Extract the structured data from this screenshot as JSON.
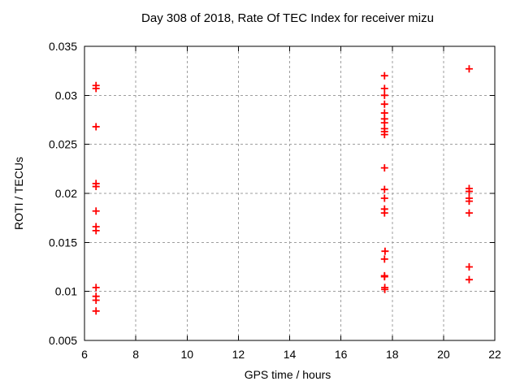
{
  "chart_data": {
    "type": "scatter",
    "title": "Day 308 of 2018, Rate Of TEC Index for receiver mizu",
    "xlabel": "GPS time / hours",
    "ylabel": "ROTI / TECUs",
    "xlim": [
      6,
      22
    ],
    "ylim": [
      0.005,
      0.035
    ],
    "xticks": [
      6,
      8,
      10,
      12,
      14,
      16,
      18,
      20,
      22
    ],
    "xtick_labels": [
      "6",
      "8",
      "10",
      "12",
      "14",
      "16",
      "18",
      "20",
      "22"
    ],
    "yticks": [
      0.005,
      0.01,
      0.015,
      0.02,
      0.025,
      0.03,
      0.035
    ],
    "ytick_labels": [
      "0.005",
      "0.01",
      "0.015",
      "0.02",
      "0.025",
      "0.03",
      "0.035"
    ],
    "grid": true,
    "legend": "none",
    "axis_color": "#000000",
    "grid_color": "#9e9e9e",
    "marker": {
      "shape": "plus",
      "color": "#ff0000",
      "size": 9,
      "stroke_width": 1.8
    },
    "series": [
      {
        "name": "ROTI",
        "points": [
          [
            6.45,
            0.031
          ],
          [
            6.45,
            0.0307
          ],
          [
            6.45,
            0.0268
          ],
          [
            6.45,
            0.021
          ],
          [
            6.45,
            0.0207
          ],
          [
            6.45,
            0.0182
          ],
          [
            6.45,
            0.0166
          ],
          [
            6.45,
            0.0162
          ],
          [
            6.45,
            0.0104
          ],
          [
            6.45,
            0.0095
          ],
          [
            6.45,
            0.0091
          ],
          [
            6.45,
            0.008
          ],
          [
            17.7,
            0.032
          ],
          [
            17.7,
            0.0307
          ],
          [
            17.7,
            0.03
          ],
          [
            17.7,
            0.0291
          ],
          [
            17.7,
            0.0282
          ],
          [
            17.7,
            0.0276
          ],
          [
            17.7,
            0.0272
          ],
          [
            17.7,
            0.0266
          ],
          [
            17.7,
            0.0263
          ],
          [
            17.7,
            0.026
          ],
          [
            17.7,
            0.0226
          ],
          [
            17.7,
            0.0204
          ],
          [
            17.7,
            0.0195
          ],
          [
            17.7,
            0.0184
          ],
          [
            17.7,
            0.018
          ],
          [
            17.72,
            0.0141
          ],
          [
            17.7,
            0.0133
          ],
          [
            17.7,
            0.0116
          ],
          [
            17.7,
            0.0115
          ],
          [
            17.71,
            0.0104
          ],
          [
            17.71,
            0.0102
          ],
          [
            21.0,
            0.0327
          ],
          [
            21.0,
            0.0205
          ],
          [
            21.0,
            0.0202
          ],
          [
            21.0,
            0.0195
          ],
          [
            21.0,
            0.0192
          ],
          [
            21.0,
            0.018
          ],
          [
            21.0,
            0.0125
          ],
          [
            21.0,
            0.0112
          ]
        ]
      }
    ]
  }
}
